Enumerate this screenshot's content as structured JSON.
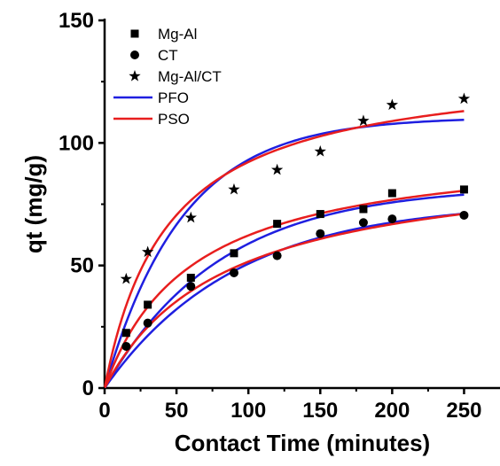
{
  "chart_data": {
    "type": "scatter",
    "xlabel": "Contact Time (minutes)",
    "ylabel": "qt (mg/g)",
    "xlim": [
      0,
      275
    ],
    "ylim": [
      0,
      150
    ],
    "x_ticks": [
      "0",
      "50",
      "100",
      "150",
      "200",
      "250"
    ],
    "y_ticks": [
      "0",
      "50",
      "100",
      "150"
    ],
    "x_tick_values": [
      0,
      50,
      100,
      150,
      200,
      250
    ],
    "y_tick_values": [
      0,
      50,
      100,
      150
    ],
    "grid": false,
    "legend_position": "top-left",
    "series": [
      {
        "name": "Mg-Al",
        "marker": "square",
        "x": [
          15,
          30,
          60,
          90,
          120,
          150,
          180,
          200,
          250
        ],
        "y": [
          22.5,
          34,
          45,
          55,
          67,
          71,
          73,
          79.5,
          81
        ]
      },
      {
        "name": "CT",
        "marker": "circle",
        "x": [
          15,
          30,
          60,
          90,
          120,
          150,
          180,
          200,
          250
        ],
        "y": [
          17,
          26.5,
          41.5,
          47,
          54,
          63,
          67.5,
          69,
          70.5
        ]
      },
      {
        "name": "Mg-Al/CT",
        "marker": "star",
        "x": [
          15,
          30,
          60,
          90,
          120,
          150,
          180,
          200,
          250
        ],
        "y": [
          44.5,
          55.5,
          69.5,
          81,
          89,
          96.5,
          109,
          115.5,
          118
        ]
      }
    ],
    "fit_lines": [
      {
        "name": "PFO",
        "color": "#1f1fe0",
        "model": "pfo",
        "curves": [
          {
            "fits": "Mg-Al",
            "qe": 82.5,
            "k": 0.0125
          },
          {
            "fits": "CT",
            "qe": 76.0,
            "k": 0.011
          },
          {
            "fits": "Mg-Al/CT",
            "qe": 110.5,
            "k": 0.0185
          }
        ]
      },
      {
        "name": "PSO",
        "color": "#e81e1e",
        "model": "pso",
        "curves": [
          {
            "fits": "Mg-Al",
            "qe": 100.0,
            "k": 0.000165
          },
          {
            "fits": "CT",
            "qe": 95.0,
            "k": 0.000125
          },
          {
            "fits": "Mg-Al/CT",
            "qe": 133.0,
            "k": 0.00017
          }
        ]
      }
    ]
  }
}
